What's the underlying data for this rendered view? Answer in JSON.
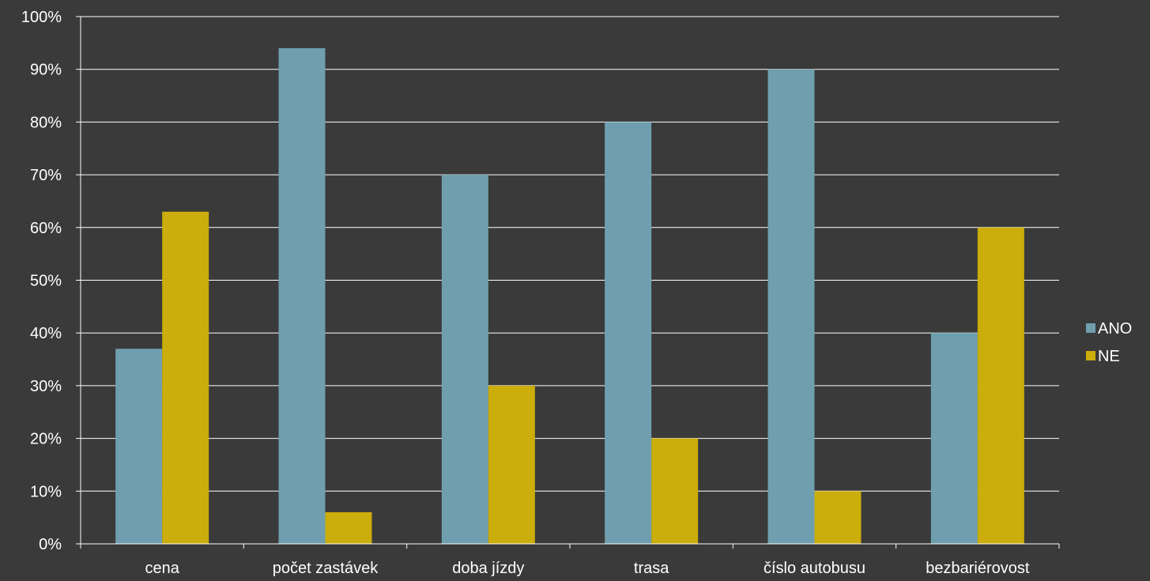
{
  "chart_data": {
    "type": "bar",
    "categories": [
      "cena",
      "počet zastávek",
      "doba jízdy",
      "trasa",
      "číslo autobusu",
      "bezbariérovost"
    ],
    "series": [
      {
        "name": "ANO",
        "values": [
          37,
          94,
          70,
          80,
          90,
          40
        ],
        "color": "#6f9fae"
      },
      {
        "name": "NE",
        "values": [
          63,
          6,
          30,
          20,
          10,
          60
        ],
        "color": "#cbad0b"
      }
    ],
    "y_ticks": [
      "0%",
      "10%",
      "20%",
      "30%",
      "40%",
      "50%",
      "60%",
      "70%",
      "80%",
      "90%",
      "100%"
    ],
    "ylim": [
      0,
      100
    ],
    "grid": true,
    "legend_position": "right",
    "background_color": "#3a3a3a",
    "axis_color": "#ffffff"
  }
}
